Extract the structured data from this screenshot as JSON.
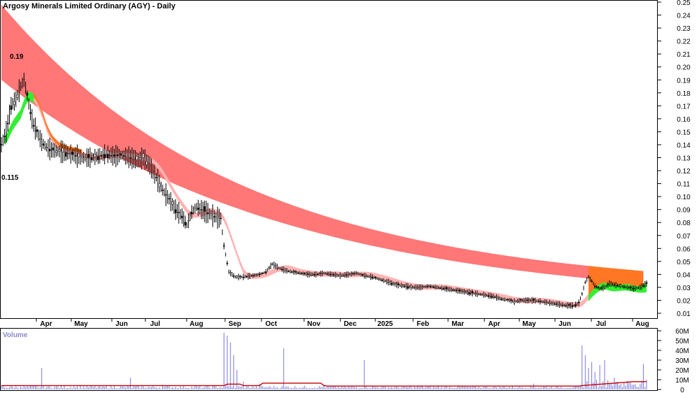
{
  "chart_data": {
    "type": "candlestick",
    "title": "Argosy Minerals Limited Ordinary (AGY) - Daily",
    "price_axis": {
      "min": 0.005,
      "max": 0.25,
      "ticks": [
        "0.25",
        "0.24",
        "0.23",
        "0.22",
        "0.21",
        "0.20",
        "0.19",
        "0.18",
        "0.17",
        "0.16",
        "0.15",
        "0.14",
        "0.13",
        "0.12",
        "0.11",
        "0.10",
        "0.09",
        "0.08",
        "0.07",
        "0.06",
        "0.05",
        "0.04",
        "0.03",
        "0.02",
        "0.01"
      ]
    },
    "volume_axis": {
      "min": 0,
      "max": 60000000,
      "ticks": [
        "60M",
        "50M",
        "40M",
        "30M",
        "20M",
        "10M",
        "0"
      ]
    },
    "volume_label": "Volume",
    "months": [
      "Apr",
      "May",
      "Jun",
      "Jul",
      "Aug",
      "Sep",
      "Oct",
      "Nov",
      "Dec",
      "2025",
      "Feb",
      "Mar",
      "Apr",
      "May",
      "Jun",
      "Jul",
      "Aug"
    ],
    "annotations": [
      {
        "text": "0.19",
        "value": 0.19
      },
      {
        "text": "0.115",
        "value": 0.115
      }
    ],
    "price_path": [
      [
        0,
        0.14
      ],
      [
        3,
        0.15
      ],
      [
        6,
        0.17
      ],
      [
        9,
        0.175
      ],
      [
        12,
        0.185
      ],
      [
        14,
        0.19
      ],
      [
        16,
        0.178
      ],
      [
        18,
        0.165
      ],
      [
        20,
        0.155
      ],
      [
        22,
        0.15
      ],
      [
        25,
        0.142
      ],
      [
        28,
        0.138
      ],
      [
        31,
        0.136
      ],
      [
        35,
        0.135
      ],
      [
        40,
        0.134
      ],
      [
        45,
        0.132
      ],
      [
        50,
        0.13
      ],
      [
        55,
        0.13
      ],
      [
        60,
        0.131
      ],
      [
        65,
        0.133
      ],
      [
        70,
        0.131
      ],
      [
        75,
        0.132
      ],
      [
        80,
        0.13
      ],
      [
        85,
        0.128
      ],
      [
        88,
        0.13
      ],
      [
        92,
        0.124
      ],
      [
        96,
        0.115
      ],
      [
        100,
        0.105
      ],
      [
        104,
        0.098
      ],
      [
        108,
        0.09
      ],
      [
        112,
        0.085
      ],
      [
        115,
        0.078
      ],
      [
        118,
        0.088
      ],
      [
        121,
        0.092
      ],
      [
        124,
        0.09
      ],
      [
        127,
        0.088
      ],
      [
        130,
        0.086
      ],
      [
        133,
        0.084
      ],
      [
        136,
        0.083
      ],
      [
        138,
        0.062
      ],
      [
        141,
        0.042
      ],
      [
        145,
        0.038
      ],
      [
        150,
        0.038
      ],
      [
        155,
        0.039
      ],
      [
        160,
        0.04
      ],
      [
        164,
        0.042
      ],
      [
        168,
        0.048
      ],
      [
        172,
        0.045
      ],
      [
        176,
        0.043
      ],
      [
        180,
        0.042
      ],
      [
        185,
        0.041
      ],
      [
        190,
        0.04
      ],
      [
        195,
        0.04
      ],
      [
        200,
        0.041
      ],
      [
        205,
        0.04
      ],
      [
        210,
        0.039
      ],
      [
        215,
        0.04
      ],
      [
        220,
        0.041
      ],
      [
        225,
        0.039
      ],
      [
        230,
        0.038
      ],
      [
        235,
        0.036
      ],
      [
        240,
        0.034
      ],
      [
        245,
        0.032
      ],
      [
        250,
        0.031
      ],
      [
        255,
        0.03
      ],
      [
        260,
        0.03
      ],
      [
        265,
        0.031
      ],
      [
        270,
        0.03
      ],
      [
        275,
        0.029
      ],
      [
        280,
        0.028
      ],
      [
        285,
        0.027
      ],
      [
        290,
        0.026
      ],
      [
        295,
        0.025
      ],
      [
        300,
        0.024
      ],
      [
        305,
        0.023
      ],
      [
        310,
        0.021
      ],
      [
        315,
        0.02
      ],
      [
        318,
        0.019
      ],
      [
        322,
        0.02
      ],
      [
        326,
        0.02
      ],
      [
        330,
        0.02
      ],
      [
        335,
        0.019
      ],
      [
        340,
        0.018
      ],
      [
        345,
        0.017
      ],
      [
        350,
        0.016
      ],
      [
        355,
        0.016
      ],
      [
        358,
        0.018
      ],
      [
        360,
        0.025
      ],
      [
        362,
        0.034
      ],
      [
        364,
        0.038
      ],
      [
        366,
        0.035
      ],
      [
        368,
        0.031
      ],
      [
        371,
        0.029
      ],
      [
        374,
        0.03
      ],
      [
        377,
        0.033
      ],
      [
        380,
        0.032
      ],
      [
        384,
        0.031
      ],
      [
        388,
        0.03
      ],
      [
        392,
        0.029
      ],
      [
        396,
        0.03
      ],
      [
        400,
        0.033
      ]
    ],
    "volumes_m": [
      [
        0,
        4
      ],
      [
        12,
        3
      ],
      [
        25,
        22
      ],
      [
        45,
        3
      ],
      [
        80,
        12
      ],
      [
        100,
        5
      ],
      [
        125,
        2
      ],
      [
        138,
        58
      ],
      [
        140,
        55
      ],
      [
        142,
        48
      ],
      [
        144,
        35
      ],
      [
        146,
        20
      ],
      [
        150,
        8
      ],
      [
        160,
        6
      ],
      [
        175,
        42
      ],
      [
        200,
        5
      ],
      [
        225,
        30
      ],
      [
        260,
        4
      ],
      [
        300,
        3
      ],
      [
        330,
        6
      ],
      [
        360,
        45
      ],
      [
        362,
        35
      ],
      [
        364,
        22
      ],
      [
        366,
        28
      ],
      [
        368,
        18
      ],
      [
        371,
        25
      ],
      [
        374,
        30
      ],
      [
        380,
        12
      ],
      [
        390,
        8
      ],
      [
        398,
        26
      ]
    ]
  }
}
